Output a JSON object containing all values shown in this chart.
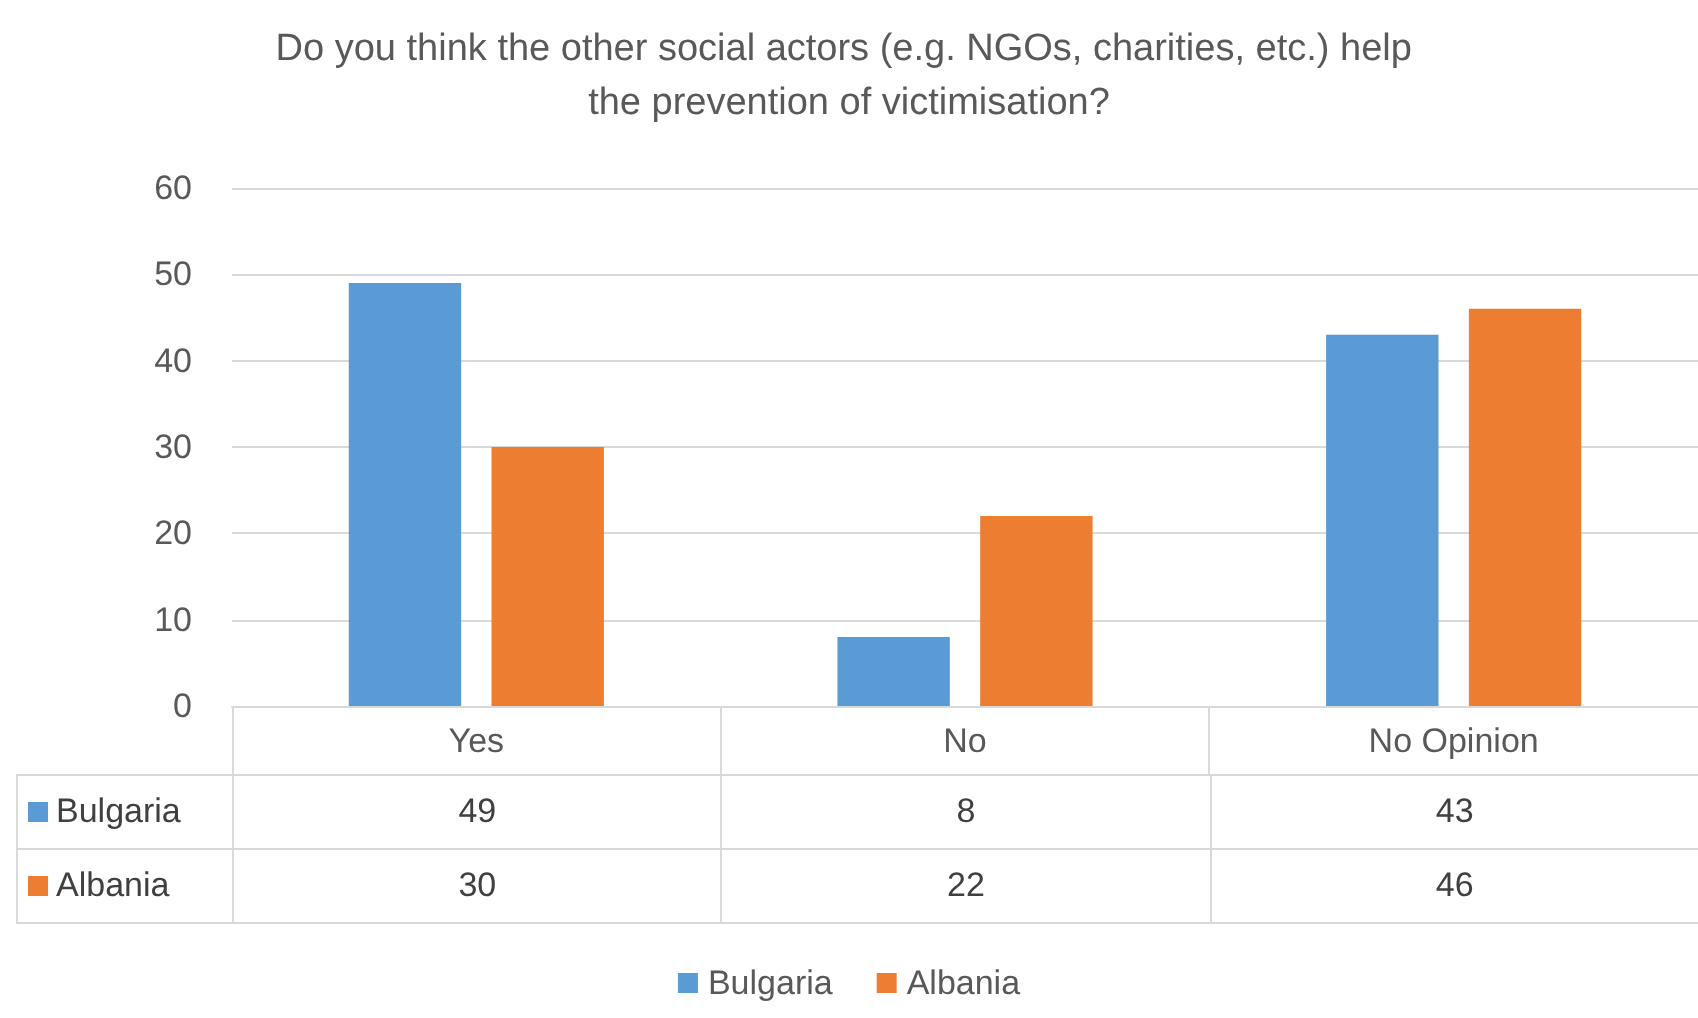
{
  "chart_data": {
    "type": "bar",
    "title": "Do you think the other social actors (e.g. NGOs, charities, etc.) help the prevention of victimisation?",
    "categories": [
      "Yes",
      "No",
      "No Opinion"
    ],
    "series": [
      {
        "name": "Bulgaria",
        "color": "#5b9bd5",
        "values": [
          49,
          8,
          43
        ]
      },
      {
        "name": "Albania",
        "color": "#ed7d31",
        "values": [
          30,
          22,
          46
        ]
      }
    ],
    "ylim": [
      0,
      60
    ],
    "yticks": [
      0,
      10,
      20,
      30,
      40,
      50,
      60
    ],
    "grid": "y",
    "legend": "bottom",
    "data_labels": true
  }
}
